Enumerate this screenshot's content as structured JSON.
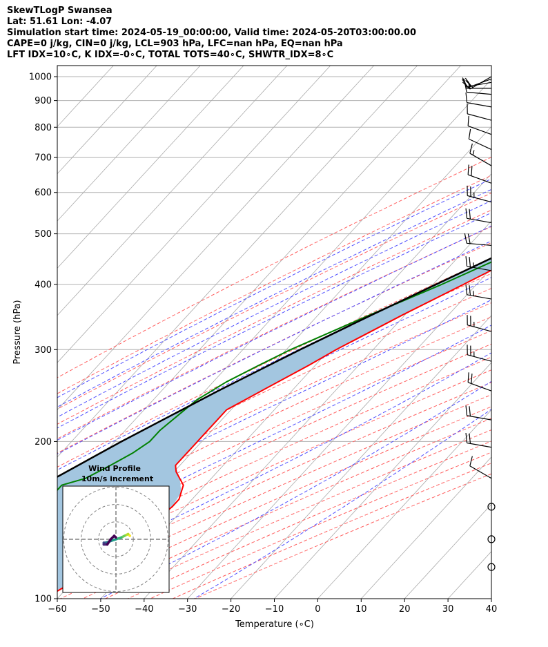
{
  "header": {
    "line1": "SkewTLogP Swansea",
    "line2": "Lat: 51.61   Lon: -4.07",
    "line3": "Simulation start time: 2024-05-19_00:00:00, Valid time: 2024-05-20T03:00:00.00",
    "line4": "CAPE=0 j/kg, CIN=0 j/kg, LCL=903 hPa, LFC=nan hPa, EQ=nan hPa",
    "line5": "LFT IDX=10∘C, K IDX=-0∘C, TOTAL TOTS=40∘C, SHWTR_IDX=8∘C"
  },
  "colors": {
    "temperature": "#ff0000",
    "dewpoint": "#008000",
    "parcel": "#000000",
    "shading": "#a3c6e0",
    "dry_adiabat": "#ff6060",
    "moist_adiabat": "#5050ff",
    "mixing_ratio": "#9b30c0",
    "isotherm": "#aaaaaa"
  },
  "chart_data": {
    "type": "skewt",
    "xlabel": "Temperature (∘C)",
    "ylabel": "Pressure (hPa)",
    "xlim": [
      -60,
      40
    ],
    "ylim": [
      1050,
      100
    ],
    "x_ticks": [
      "−60",
      "−50",
      "−40",
      "−30",
      "−20",
      "−10",
      "0",
      "10",
      "20",
      "30",
      "40"
    ],
    "y_ticks": [
      "1000",
      "900",
      "800",
      "700",
      "600",
      "500",
      "400",
      "300",
      "200",
      "100"
    ],
    "y_tick_values": [
      1000,
      900,
      800,
      700,
      600,
      500,
      400,
      300,
      200,
      100
    ],
    "grid": true,
    "series": [
      {
        "key": "temperature",
        "p": [
          1000,
          985,
          970,
          950,
          925,
          900,
          875,
          850,
          800,
          750,
          700,
          650,
          600,
          550,
          500,
          450,
          400,
          350,
          300,
          280,
          250,
          230,
          220,
          200,
          190,
          180,
          175,
          165,
          155,
          150,
          140,
          130,
          120,
          110,
          100
        ],
        "t": [
          13,
          14.2,
          14.8,
          14.5,
          13.5,
          12,
          10.4,
          9,
          6.5,
          3.5,
          0,
          -4.5,
          -9,
          -14.5,
          -20,
          -26.5,
          -33,
          -40.5,
          -48.5,
          -51.5,
          -57,
          -61,
          -61,
          -61,
          -61,
          -61,
          -59.5,
          -55,
          -53,
          -53,
          -54,
          -55,
          -58,
          -59,
          -63
        ]
      },
      {
        "key": "dewpoint",
        "p": [
          1000,
          975,
          950,
          925,
          900,
          875,
          850,
          825,
          800,
          775,
          750,
          725,
          700,
          675,
          650,
          625,
          600,
          575,
          550,
          525,
          500,
          450,
          400,
          350,
          300,
          280,
          260,
          240,
          225,
          210,
          200,
          190,
          180,
          170,
          165,
          100
        ],
        "t": [
          6,
          6,
          4.6,
          2.5,
          2,
          0,
          -4,
          -8.5,
          -14,
          -18,
          -23,
          -23,
          -20,
          -17.5,
          -16.5,
          -16,
          -16,
          -17,
          -18.5,
          -20.5,
          -23.5,
          -30,
          -38,
          -48,
          -59,
          -63,
          -67,
          -70,
          -71,
          -72,
          -72,
          -73.5,
          -76,
          -79,
          -83,
          -83
        ]
      },
      {
        "key": "parcel",
        "p": [
          1000,
          950,
          903,
          850,
          800,
          750,
          700,
          650,
          600,
          550,
          500,
          450,
          400,
          350,
          300,
          250,
          200,
          150,
          100
        ],
        "t": [
          6,
          6.8,
          7.6,
          4.6,
          1.6,
          -1.9,
          -5.6,
          -9.7,
          -14.3,
          -19.5,
          -25.4,
          -32,
          -39.3,
          -47.6,
          -56.8,
          -67,
          -78.5,
          -92,
          -110
        ]
      }
    ],
    "barbs_kt": [
      {
        "p": 1000,
        "spd": 20,
        "dir": 240
      },
      {
        "p": 990,
        "spd": 20,
        "dir": 250
      },
      {
        "p": 975,
        "spd": 15,
        "dir": 260
      },
      {
        "p": 950,
        "spd": 15,
        "dir": 270
      },
      {
        "p": 925,
        "spd": 10,
        "dir": 275
      },
      {
        "p": 875,
        "spd": 10,
        "dir": 280
      },
      {
        "p": 825,
        "spd": 10,
        "dir": 285
      },
      {
        "p": 775,
        "spd": 10,
        "dir": 290
      },
      {
        "p": 725,
        "spd": 10,
        "dir": 295
      },
      {
        "p": 675,
        "spd": 15,
        "dir": 300
      },
      {
        "p": 625,
        "spd": 20,
        "dir": 290
      },
      {
        "p": 575,
        "spd": 25,
        "dir": 285
      },
      {
        "p": 525,
        "spd": 20,
        "dir": 280
      },
      {
        "p": 475,
        "spd": 20,
        "dir": 275
      },
      {
        "p": 425,
        "spd": 25,
        "dir": 280
      },
      {
        "p": 375,
        "spd": 25,
        "dir": 280
      },
      {
        "p": 325,
        "spd": 25,
        "dir": 285
      },
      {
        "p": 285,
        "spd": 25,
        "dir": 285
      },
      {
        "p": 250,
        "spd": 20,
        "dir": 290
      },
      {
        "p": 220,
        "spd": 20,
        "dir": 280
      },
      {
        "p": 195,
        "spd": 20,
        "dir": 280
      },
      {
        "p": 170,
        "spd": 10,
        "dir": 300
      },
      {
        "p": 150,
        "spd": 0,
        "dir": 0
      },
      {
        "p": 130,
        "spd": 0,
        "dir": 0
      },
      {
        "p": 115,
        "spd": 0,
        "dir": 0
      }
    ],
    "wind_profile": {
      "title": "Wind Profile",
      "subtitle": "10m/s increment",
      "u": [
        8,
        7,
        5,
        3,
        0,
        -3,
        -6,
        -7,
        -7,
        -5,
        -3,
        -1,
        0
      ],
      "v": [
        2,
        3,
        2,
        1,
        0,
        -1,
        -2,
        -2,
        -3,
        -3,
        0,
        2,
        1
      ]
    }
  }
}
